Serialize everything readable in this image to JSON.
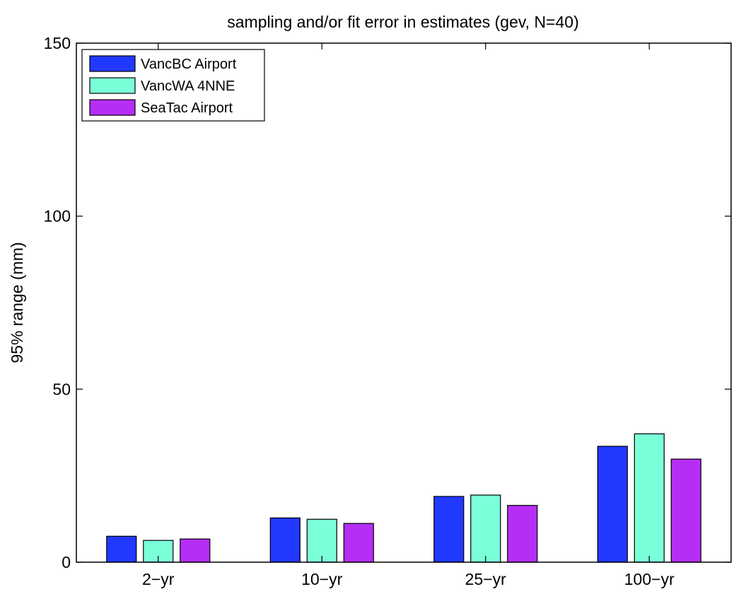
{
  "chart_data": {
    "type": "bar",
    "title": "sampling and/or fit error in estimates (gev, N=40)",
    "xlabel": "",
    "ylabel": "95% range (mm)",
    "categories": [
      "2−yr",
      "10−yr",
      "25−yr",
      "100−yr"
    ],
    "ylim": [
      0,
      150
    ],
    "yticks": [
      "0",
      "50",
      "100",
      "150"
    ],
    "grid": false,
    "legend_position": "top-left",
    "series": [
      {
        "name": "VancBC Airport",
        "color": "#2138ff",
        "values": [
          7.5,
          12.8,
          19.0,
          33.5
        ]
      },
      {
        "name": "VancWA 4NNE",
        "color": "#7bffd9",
        "values": [
          6.3,
          12.4,
          19.4,
          37.1
        ]
      },
      {
        "name": "SeaTac Airport",
        "color": "#b52ef6",
        "values": [
          6.7,
          11.2,
          16.4,
          29.8
        ]
      }
    ]
  }
}
